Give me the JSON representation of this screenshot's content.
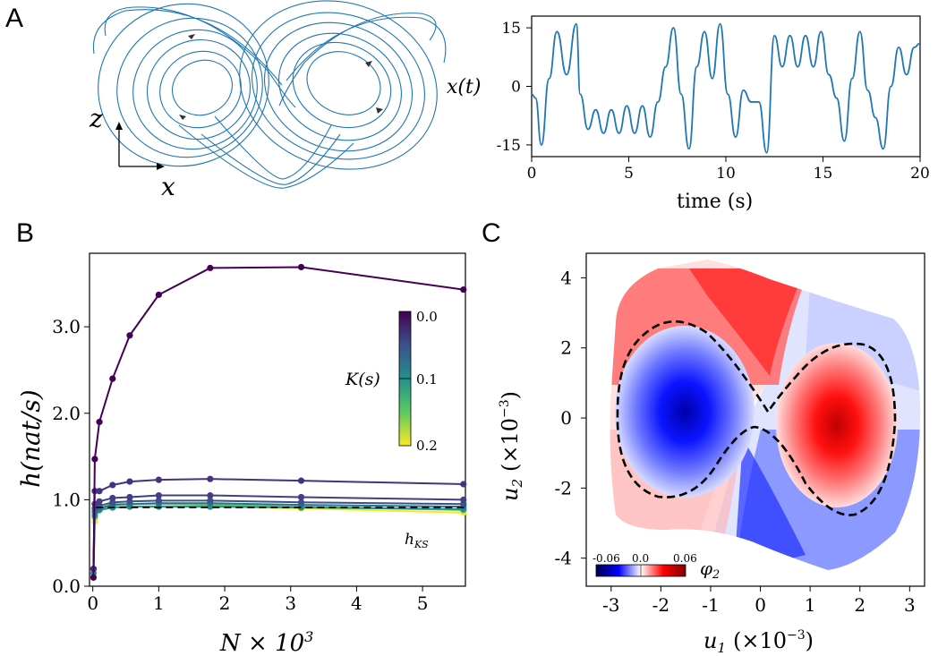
{
  "panels": {
    "A": {
      "letter": "A",
      "attractor": {
        "axis_z": "z",
        "axis_x": "x"
      },
      "timeseries": {
        "ylabel": "x(t)",
        "xlabel": "time (s)",
        "xticks": [
          "0",
          "5",
          "10",
          "15",
          "20"
        ],
        "yticks": [
          "15",
          "0",
          "-15"
        ]
      }
    },
    "B": {
      "letter": "B",
      "ylabel": "h(nat/s)",
      "xlabel": "N × 10",
      "xlabel_sup": "3",
      "hks_label": "h",
      "hks_sub": "KS",
      "xticks": [
        "0",
        "1",
        "2",
        "3",
        "4",
        "5"
      ],
      "yticks": [
        "0.0",
        "1.0",
        "2.0",
        "3.0"
      ],
      "colorbar": {
        "label": "K(s)",
        "ticks": [
          "0.0",
          "0.1",
          "0.2"
        ]
      }
    },
    "C": {
      "letter": "C",
      "xlabel": "u",
      "xlabel_sub": "1",
      "xlabel_unit": "(×10",
      "xlabel_exp": "−3",
      "ylabel": "u",
      "ylabel_sub": "2",
      "ylabel_unit": "(×10",
      "ylabel_exp": "−3",
      "xticks": [
        "-3",
        "-2",
        "-1",
        "0",
        "1",
        "2",
        "3"
      ],
      "yticks": [
        "4",
        "2",
        "0",
        "-2",
        "-4"
      ],
      "colorbar": {
        "label": "φ",
        "label_sub": "2",
        "ticks": [
          "-0.06",
          "0.0",
          "0.06"
        ]
      }
    }
  },
  "colors": {
    "lorenz_blue": "#1f77b4",
    "viridis_dark": "#440154",
    "viridis_yellow": "#fde725",
    "phi_red": "#c40000",
    "phi_blue": "#0000b0"
  },
  "chart_data": [
    {
      "type": "line",
      "panel": "A-right",
      "title": "",
      "xlabel": "time (s)",
      "ylabel": "x(t)",
      "xlim": [
        0,
        20
      ],
      "ylim": [
        -18,
        18
      ],
      "series": [
        {
          "x": [
            0,
            0.2,
            0.5,
            0.9,
            1.3,
            1.8,
            2.3,
            2.5,
            2.9,
            3.3,
            3.7,
            4.1,
            4.5,
            4.9,
            5.3,
            5.7,
            6.1,
            6.5,
            6.9,
            7.3,
            7.7,
            8.1,
            8.5,
            8.9,
            9.3,
            9.7,
            10.1,
            10.5,
            10.9,
            11.3,
            11.7,
            12.1,
            12.5,
            12.9,
            13.3,
            13.7,
            14.1,
            14.5,
            14.9,
            15.3,
            15.7,
            16.1,
            16.5,
            16.9,
            17.3,
            17.7,
            18.1,
            18.5,
            18.9,
            19.3,
            19.7,
            20
          ],
          "values": [
            -2,
            -3,
            -15,
            2,
            14,
            3,
            16,
            -2,
            -11,
            -6,
            -12,
            -6,
            -12,
            -5,
            -12,
            -5,
            -13,
            -4,
            5,
            15,
            -2,
            -16,
            5,
            14,
            2,
            16,
            -2,
            -13,
            -1,
            -4,
            -4,
            -17,
            13,
            5,
            13,
            5,
            13,
            5,
            14,
            3,
            -3,
            -14,
            2,
            14,
            -1,
            -8,
            -16,
            0,
            10,
            3,
            10,
            11
          ]
        }
      ]
    },
    {
      "type": "line",
      "panel": "B",
      "title": "",
      "xlabel": "N × 10^3",
      "ylabel": "h(nat/s)",
      "xlim": [
        -0.05,
        5.65
      ],
      "ylim": [
        0,
        3.85
      ],
      "x": [
        0.01,
        0.03,
        0.1,
        0.3,
        0.56,
        1.0,
        1.78,
        3.16,
        5.62
      ],
      "series": [
        {
          "color": "#440154",
          "values": [
            0.1,
            1.47,
            1.9,
            2.4,
            2.9,
            3.37,
            3.68,
            3.69,
            3.43
          ]
        },
        {
          "color": "#46327e",
          "values": [
            0.2,
            1.1,
            1.1,
            1.17,
            1.21,
            1.23,
            1.24,
            1.22,
            1.18
          ]
        },
        {
          "color": "#433e85",
          "values": [
            0.2,
            0.95,
            0.98,
            1.02,
            1.03,
            1.05,
            1.05,
            1.03,
            1.0
          ]
        },
        {
          "color": "#3b528b",
          "values": [
            0.2,
            0.9,
            0.93,
            0.97,
            0.98,
            0.99,
            0.99,
            0.97,
            0.95
          ]
        },
        {
          "color": "#2c728e",
          "values": [
            0.2,
            0.86,
            0.9,
            0.94,
            0.95,
            0.96,
            0.96,
            0.94,
            0.92
          ]
        },
        {
          "color": "#21918c",
          "values": [
            0.15,
            0.82,
            0.88,
            0.91,
            0.92,
            0.92,
            0.92,
            0.91,
            0.89
          ]
        },
        {
          "color": "#5ec962",
          "values": [
            0.15,
            0.8,
            0.9,
            0.95,
            0.95,
            0.95,
            0.94,
            0.92,
            0.88
          ]
        },
        {
          "color": "#fde725",
          "values": [
            0.1,
            0.75,
            0.88,
            0.92,
            0.92,
            0.92,
            0.92,
            0.9,
            0.85
          ]
        }
      ],
      "reference_line": {
        "label": "h_KS",
        "value": 0.91
      },
      "colorbar": {
        "label": "K(s)",
        "range": [
          0.0,
          0.2
        ],
        "cmap": "viridis"
      }
    },
    {
      "type": "heatmap",
      "panel": "C",
      "title": "",
      "xlabel": "u_1 (×10^-3)",
      "ylabel": "u_2 (×10^-3)",
      "xlim": [
        -3.5,
        3.3
      ],
      "ylim": [
        -4.8,
        4.7
      ],
      "colorbar": {
        "label": "φ_2",
        "range": [
          -0.06,
          0.06
        ],
        "cmap": "seismic"
      },
      "extrema": [
        {
          "u1": -1.6,
          "u2": -0.1,
          "phi2": -0.06
        },
        {
          "u1": 1.6,
          "u2": 0.0,
          "phi2": 0.06
        }
      ],
      "zero_contour": "figure-eight dashed line"
    }
  ]
}
